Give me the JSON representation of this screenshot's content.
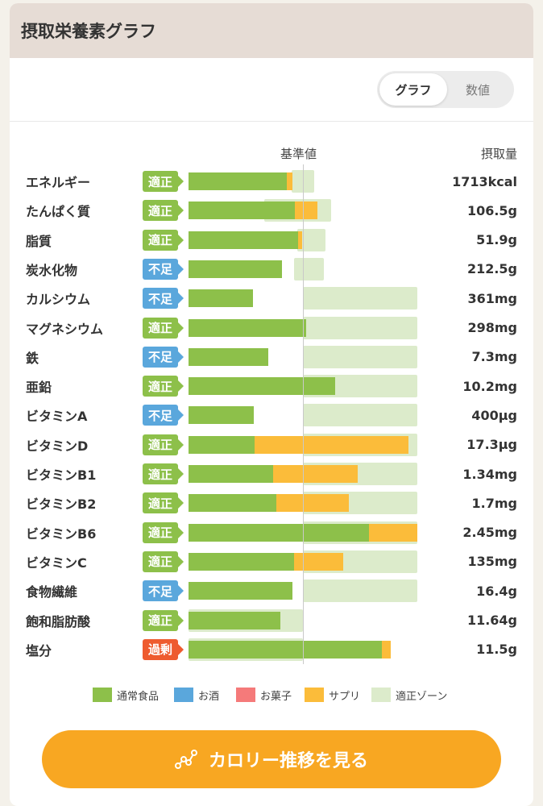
{
  "header": {
    "title": "摂取栄養素グラフ"
  },
  "toggle": {
    "graph_label": "グラフ",
    "number_label": "数値"
  },
  "columns": {
    "standard": "基準値",
    "intake": "摂取量"
  },
  "status_colors": {
    "適正": "#8dc04a",
    "不足": "#5aa7dc",
    "過剰": "#ee5b2f"
  },
  "chart_data": {
    "type": "bar",
    "rows": [
      {
        "name": "エネルギー",
        "status": "適正",
        "value": "1713kcal",
        "food": 0.86,
        "supp": 0.05,
        "zone": [
          0.9,
          1.1
        ]
      },
      {
        "name": "たんぱく質",
        "status": "適正",
        "value": "106.5g",
        "food": 0.93,
        "supp": 0.2,
        "zone": [
          0.66,
          1.25
        ]
      },
      {
        "name": "脂質",
        "status": "適正",
        "value": "51.9g",
        "food": 0.96,
        "supp": 0.03,
        "zone": [
          0.95,
          1.2
        ]
      },
      {
        "name": "炭水化物",
        "status": "不足",
        "value": "212.5g",
        "food": 0.82,
        "supp": 0.0,
        "zone": [
          0.92,
          1.18
        ]
      },
      {
        "name": "カルシウム",
        "status": "不足",
        "value": "361mg",
        "food": 0.56,
        "supp": 0.0,
        "zone": [
          1.0,
          2.0
        ]
      },
      {
        "name": "マグネシウム",
        "status": "適正",
        "value": "298mg",
        "food": 1.03,
        "supp": 0.0,
        "zone": [
          1.0,
          2.0
        ]
      },
      {
        "name": "鉄",
        "status": "不足",
        "value": "7.3mg",
        "food": 0.7,
        "supp": 0.0,
        "zone": [
          1.0,
          2.0
        ]
      },
      {
        "name": "亜鉛",
        "status": "適正",
        "value": "10.2mg",
        "food": 1.28,
        "supp": 0.0,
        "zone": [
          1.0,
          2.0
        ]
      },
      {
        "name": "ビタミンA",
        "status": "不足",
        "value": "400μg",
        "food": 0.57,
        "supp": 0.0,
        "zone": [
          1.0,
          2.0
        ]
      },
      {
        "name": "ビタミンD",
        "status": "適正",
        "value": "17.3μg",
        "food": 0.58,
        "supp": 1.34,
        "zone": [
          1.0,
          2.0
        ]
      },
      {
        "name": "ビタミンB1",
        "status": "適正",
        "value": "1.34mg",
        "food": 0.74,
        "supp": 0.74,
        "zone": [
          1.0,
          2.0
        ]
      },
      {
        "name": "ビタミンB2",
        "status": "適正",
        "value": "1.7mg",
        "food": 0.77,
        "supp": 0.63,
        "zone": [
          1.0,
          2.0
        ]
      },
      {
        "name": "ビタミンB6",
        "status": "適正",
        "value": "2.45mg",
        "food": 1.58,
        "supp": 0.42,
        "zone": [
          1.0,
          2.0
        ]
      },
      {
        "name": "ビタミンC",
        "status": "適正",
        "value": "135mg",
        "food": 0.92,
        "supp": 0.43,
        "zone": [
          1.0,
          2.0
        ]
      },
      {
        "name": "食物繊維",
        "status": "不足",
        "value": "16.4g",
        "food": 0.91,
        "supp": 0.0,
        "zone": [
          1.0,
          2.0
        ]
      },
      {
        "name": "飽和脂肪酸",
        "status": "適正",
        "value": "11.64g",
        "food": 0.8,
        "supp": 0.0,
        "zone": [
          0.0,
          1.0
        ]
      },
      {
        "name": "塩分",
        "status": "過剰",
        "value": "11.5g",
        "food": 1.69,
        "supp": 0.08,
        "zone": [
          0.0,
          1.0
        ]
      }
    ]
  },
  "legend": [
    {
      "label": "通常食品",
      "color": "#8dc04a"
    },
    {
      "label": "お酒",
      "color": "#5aa7dc"
    },
    {
      "label": "お菓子",
      "color": "#f57a7a"
    },
    {
      "label": "サプリ",
      "color": "#fbbc3a"
    },
    {
      "label": "適正ゾーン",
      "color": "#dcebcb"
    }
  ],
  "cta": {
    "label": "カロリー推移を見る"
  }
}
